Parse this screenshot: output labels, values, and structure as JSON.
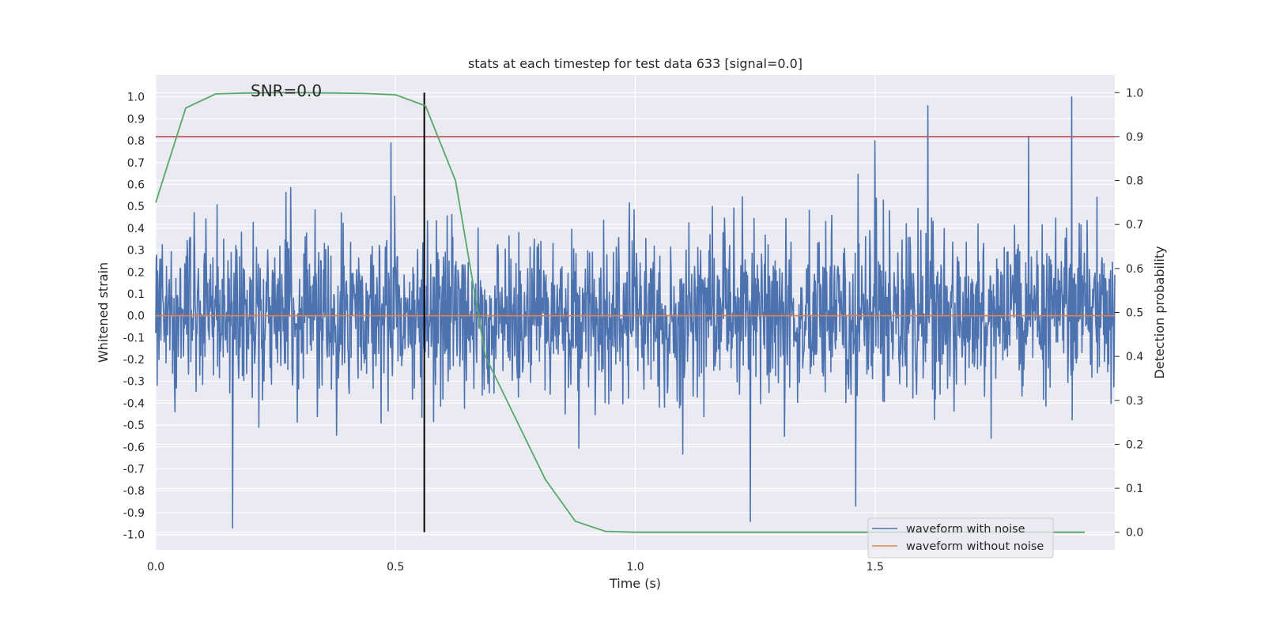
{
  "chart_data": {
    "type": "line",
    "title": "stats at each timestep for test data 633 [signal=0.0]",
    "xlabel": "Time (s)",
    "ylabel": "Whitened strain",
    "y2label": "Detection probability",
    "xlim": [
      0.0,
      2.0
    ],
    "ylim": [
      -1.07,
      1.1
    ],
    "y2lim": [
      -0.04,
      1.04
    ],
    "x_ticks": [
      0.0,
      0.5,
      1.0,
      1.5
    ],
    "x_tick_labels": [
      "0.0",
      "0.5",
      "1.0",
      "1.5"
    ],
    "y_ticks": [
      1.0,
      0.9,
      0.8,
      0.7,
      0.6,
      0.5,
      0.4,
      0.3,
      0.2,
      0.1,
      0.0,
      -0.1,
      -0.2,
      -0.3,
      -0.4,
      -0.5,
      -0.6,
      -0.7,
      -0.8,
      -0.9,
      -1.0
    ],
    "y_tick_labels": [
      "1.0",
      "0.9",
      "0.8",
      "0.7",
      "0.6",
      "0.5",
      "0.4",
      "0.3",
      "0.2",
      "0.1",
      "0.0",
      "-0.1",
      "-0.2",
      "-0.3",
      "-0.4",
      "-0.5",
      "-0.6",
      "-0.7",
      "-0.8",
      "-0.9",
      "-1.0"
    ],
    "y2_ticks": [
      1.0,
      0.9,
      0.8,
      0.7,
      0.6,
      0.5,
      0.4,
      0.3,
      0.2,
      0.1,
      0.0
    ],
    "y2_tick_labels": [
      "1.0",
      "0.9",
      "0.8",
      "0.7",
      "0.6",
      "0.5",
      "0.4",
      "0.3",
      "0.2",
      "0.1",
      "0.0"
    ],
    "grid": true,
    "annotation": "SNR=0.0",
    "threshold_y2": 0.9,
    "marker_x": 0.56,
    "marker_y2_range": [
      0.0,
      1.0
    ],
    "noisy_waveform": {
      "name": "waveform with noise",
      "color": "#4c72b0",
      "samples": 2048,
      "x_range": [
        0.0,
        2.0
      ],
      "peak_times": [
        0.16,
        0.49,
        1.61,
        1.82,
        1.91,
        1.24,
        1.46,
        1.5
      ],
      "peak_values": [
        -0.97,
        0.79,
        0.96,
        0.82,
        1.0,
        -0.94,
        -0.87,
        0.8
      ]
    },
    "clean_waveform": {
      "name": "waveform without noise",
      "color": "#dd8452",
      "x": [
        0.0,
        2.0
      ],
      "y": [
        0.0,
        0.0
      ]
    },
    "detection_probability": {
      "name": "detection probability",
      "color": "#55a868",
      "x": [
        0.0,
        0.0625,
        0.125,
        0.1875,
        0.25,
        0.3125,
        0.375,
        0.4375,
        0.5,
        0.5625,
        0.625,
        0.6875,
        0.75,
        0.8125,
        0.875,
        0.9375,
        1.0,
        1.0625,
        1.25,
        1.5,
        1.75,
        1.9375
      ],
      "y": [
        0.75,
        0.965,
        0.997,
        0.999,
        1.0,
        1.0,
        0.999,
        0.998,
        0.995,
        0.97,
        0.8,
        0.4,
        0.26,
        0.12,
        0.025,
        0.002,
        0.0,
        0.0,
        0.0,
        0.0,
        0.0,
        0.0
      ]
    },
    "threshold_color": "#c44e52",
    "marker_color": "#000000",
    "legend": {
      "position": "lower-right",
      "entries": [
        "waveform with noise",
        "waveform without noise"
      ]
    }
  }
}
